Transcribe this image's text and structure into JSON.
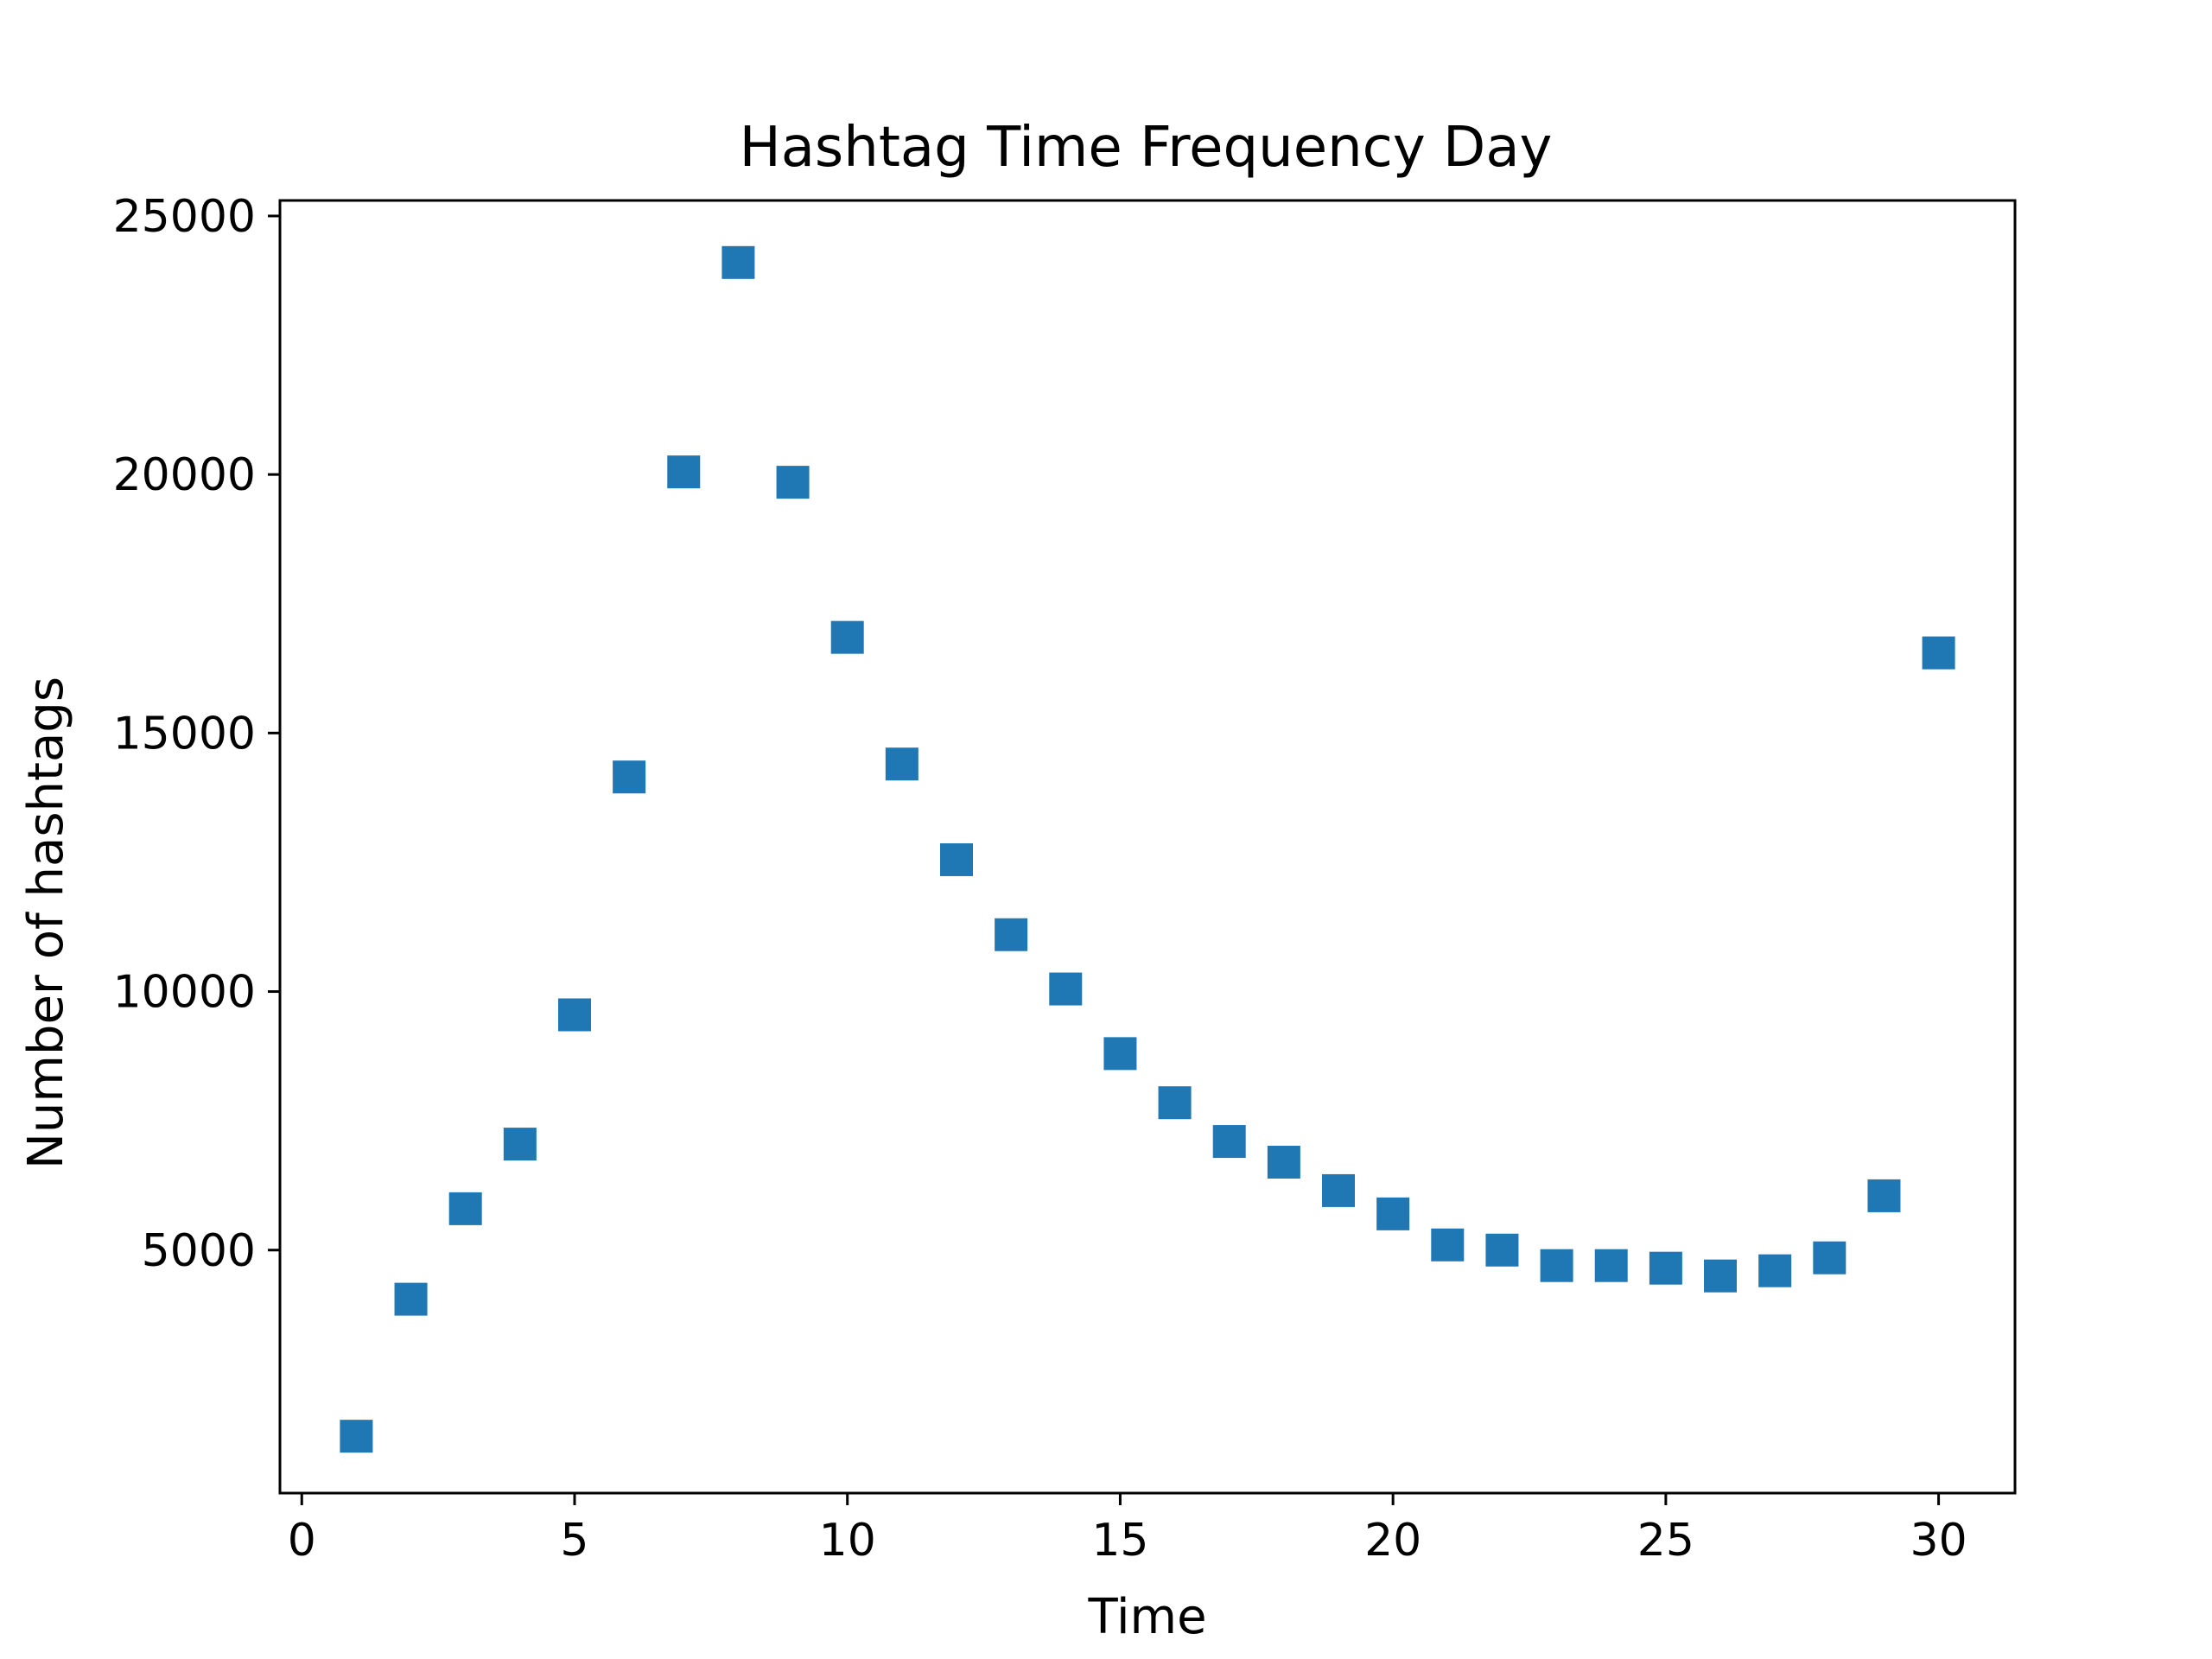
{
  "colors": {
    "marker": "#1f77b4",
    "axes": "#000000",
    "background": "#ffffff"
  },
  "chart_data": {
    "type": "scatter",
    "title": "Hashtag Time Frequency Day",
    "xlabel": "Time",
    "ylabel": "Number of hashtags",
    "marker": "square",
    "grid": false,
    "legend": false,
    "xlim": [
      -0.4,
      31.4
    ],
    "ylim": [
      300,
      25300
    ],
    "xticks": [
      0,
      5,
      10,
      15,
      20,
      25,
      30
    ],
    "xtick_labels": [
      "0",
      "5",
      "10",
      "15",
      "20",
      "25",
      "30"
    ],
    "yticks": [
      5000,
      10000,
      15000,
      20000,
      25000
    ],
    "ytick_labels": [
      "5000",
      "10000",
      "15000",
      "20000",
      "25000"
    ],
    "series": [
      {
        "x": [
          1,
          2,
          3,
          4,
          5,
          6,
          7,
          8,
          9,
          10,
          11,
          12,
          13,
          14,
          15,
          16,
          17,
          18,
          19,
          20,
          21,
          22,
          23,
          24,
          25,
          26,
          27,
          28,
          29,
          30
        ],
        "y": [
          1400,
          4050,
          5800,
          7050,
          9550,
          14150,
          20050,
          24100,
          19850,
          16850,
          14400,
          12550,
          11100,
          10050,
          8800,
          7850,
          7100,
          6700,
          6150,
          5700,
          5100,
          5000,
          4700,
          4700,
          4650,
          4500,
          4600,
          4850,
          6050,
          16550
        ]
      }
    ]
  }
}
